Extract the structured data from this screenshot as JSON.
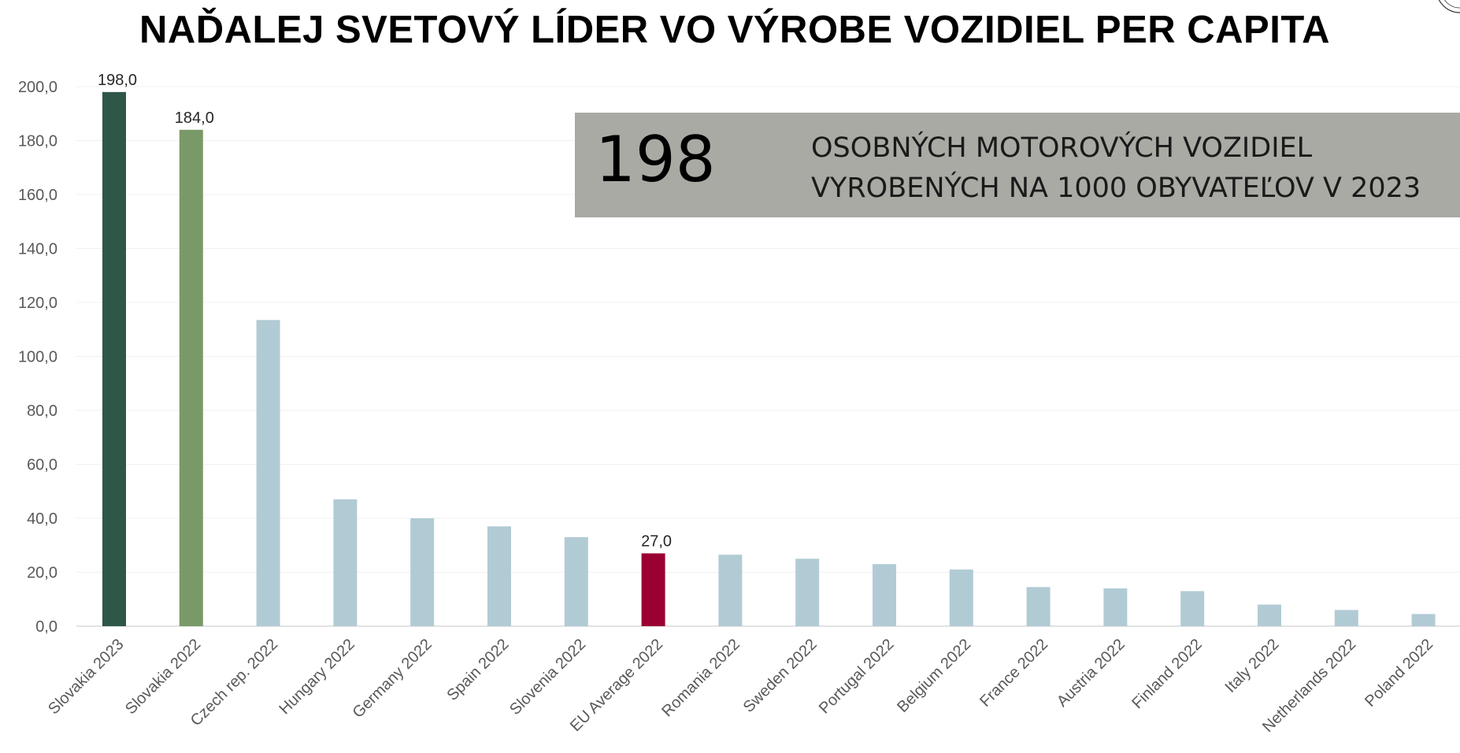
{
  "title": "NAĎALEJ SVETOVÝ LÍDER VO VÝROBE VOZIDIEL PER CAPITA",
  "callout": {
    "number": "198",
    "line1": "OSOBNÝCH MOTOROVÝCH VOZIDIEL",
    "line2": "VYROBENÝCH NA 1000 OBYVATEĽOV V 2023"
  },
  "colors": {
    "slovakia_2023": "#2e5748",
    "slovakia_2022": "#7a9968",
    "default": "#b1cbd5",
    "eu_average": "#9b0033",
    "callout_bg": "#a9aaa4"
  },
  "chart_data": {
    "type": "bar",
    "title": "NAĎALEJ SVETOVÝ LÍDER VO VÝROBE VOZIDIEL PER CAPITA",
    "xlabel": "",
    "ylabel": "",
    "ylim": [
      0,
      200
    ],
    "yticks": [
      "0,0",
      "20,0",
      "40,0",
      "60,0",
      "80,0",
      "100,0",
      "120,0",
      "140,0",
      "160,0",
      "180,0",
      "200,0"
    ],
    "grid": true,
    "categories": [
      "Slovakia 2023",
      "Slovakia 2022",
      "Czech rep. 2022",
      "Hungary 2022",
      "Germany 2022",
      "Spain 2022",
      "Slovenia 2022",
      "EU Average 2022",
      "Romania 2022",
      "Sweden 2022",
      "Portugal 2022",
      "Belgium 2022",
      "France 2022",
      "Austria 2022",
      "Finland 2022",
      "Italy 2022",
      "Netherlands 2022",
      "Poland 2022"
    ],
    "values": [
      198.0,
      184.0,
      113.5,
      47.0,
      40.0,
      37.0,
      33.0,
      27.0,
      26.5,
      25.0,
      23.0,
      21.0,
      14.5,
      14.0,
      13.0,
      8.0,
      6.0,
      4.5
    ],
    "data_labels": [
      {
        "index": 0,
        "text": "198,0"
      },
      {
        "index": 1,
        "text": "184,0"
      },
      {
        "index": 7,
        "text": "27,0"
      }
    ],
    "bar_colors": [
      "slovakia_2023",
      "slovakia_2022",
      "default",
      "default",
      "default",
      "default",
      "default",
      "eu_average",
      "default",
      "default",
      "default",
      "default",
      "default",
      "default",
      "default",
      "default",
      "default",
      "default"
    ]
  }
}
